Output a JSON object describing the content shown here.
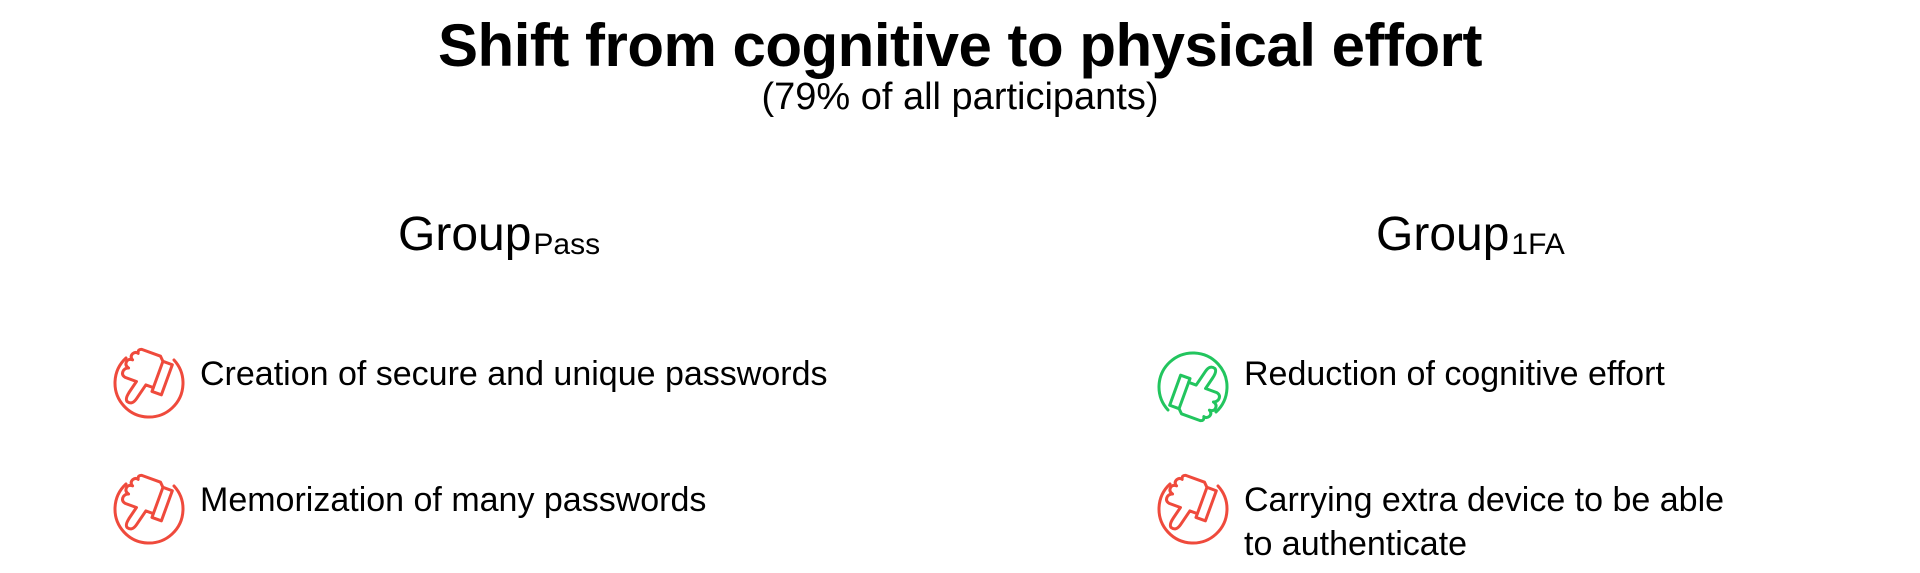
{
  "title": "Shift from cognitive to physical effort",
  "subtitle": "(79% of all participants)",
  "colors": {
    "negative": "#ef4a3c",
    "positive": "#22c55e"
  },
  "groups": [
    {
      "label_main": "Group",
      "label_sub": "Pass",
      "items": [
        {
          "icon": "thumbs-down-icon",
          "sentiment": "negative",
          "text": "Creation of secure and unique passwords"
        },
        {
          "icon": "thumbs-down-icon",
          "sentiment": "negative",
          "text": "Memorization of many passwords"
        }
      ]
    },
    {
      "label_main": "Group",
      "label_sub": "1FA",
      "items": [
        {
          "icon": "thumbs-up-icon",
          "sentiment": "positive",
          "text": "Reduction of cognitive effort"
        },
        {
          "icon": "thumbs-down-icon",
          "sentiment": "negative",
          "text_line1": "Carrying extra device to be able",
          "text_line2": "to authenticate"
        }
      ]
    }
  ]
}
